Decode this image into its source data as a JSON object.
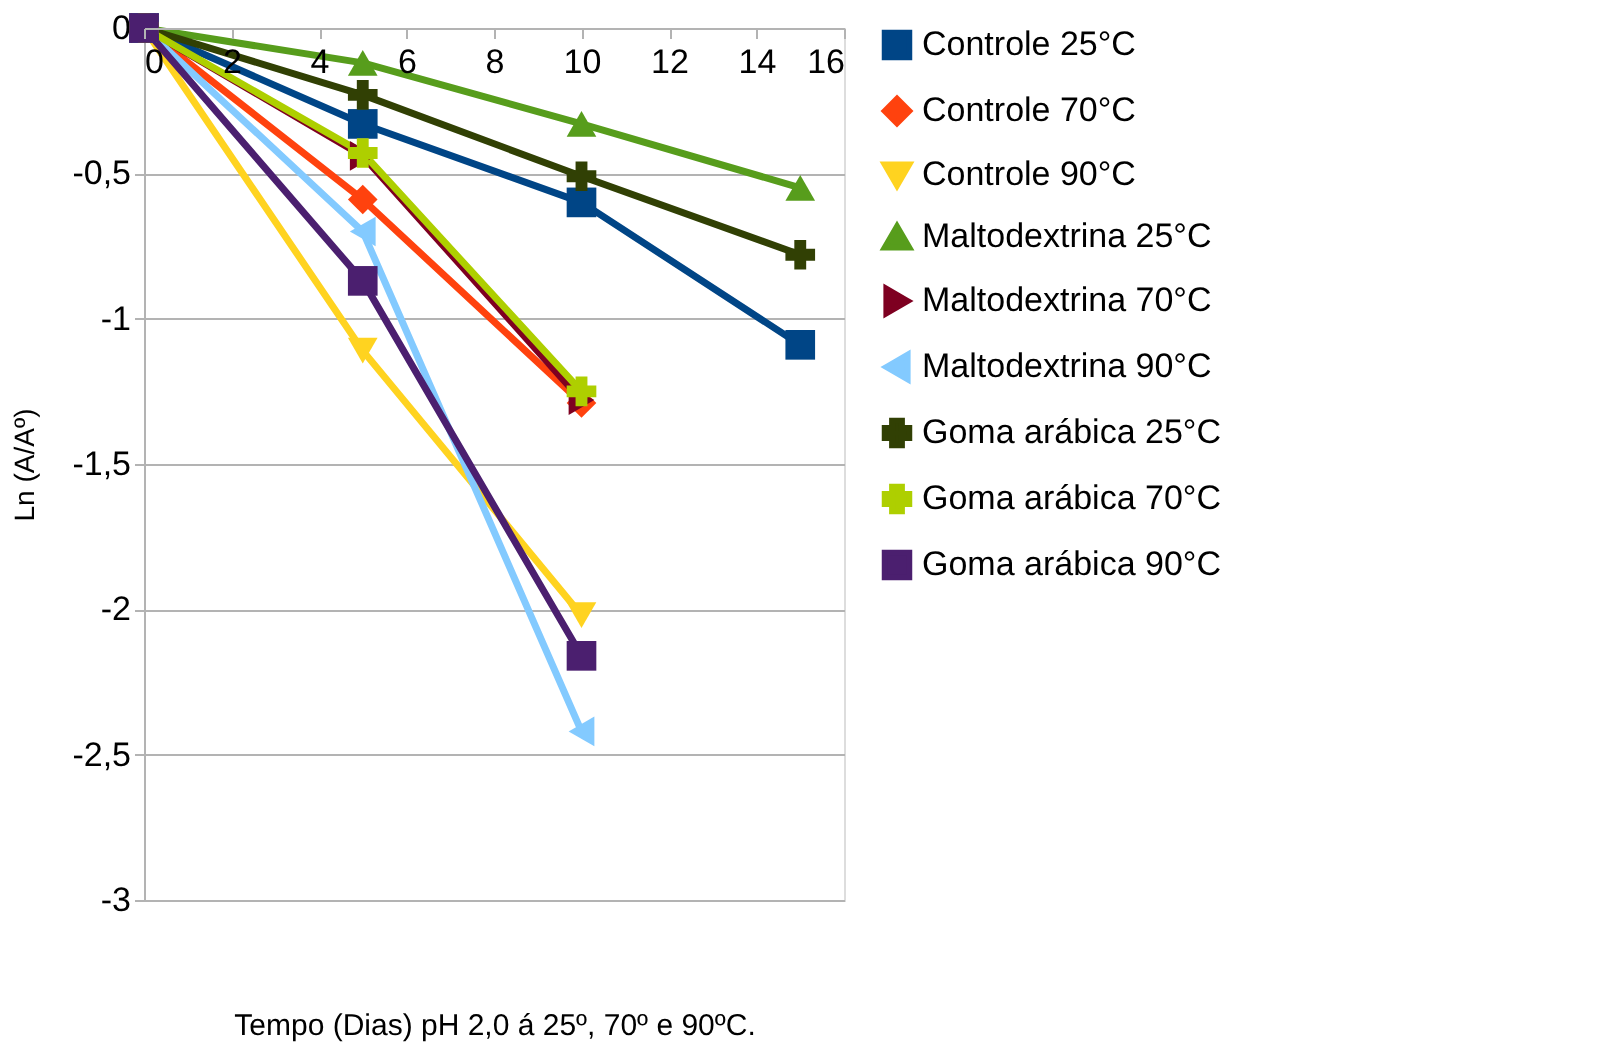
{
  "chart_data": {
    "type": "line",
    "xlabel": "Tempo (Dias) pH 2,0 á 25º, 70º e 90ºC.",
    "ylabel": "Ln (A/Aº)",
    "xlim": [
      0,
      16
    ],
    "xticks": [
      0,
      2,
      4,
      6,
      8,
      10,
      12,
      14,
      16
    ],
    "ylim": [
      -3,
      0
    ],
    "yticks": [
      {
        "value": -3,
        "label": "-3"
      },
      {
        "value": -2.5,
        "label": "-2,5"
      },
      {
        "value": -2,
        "label": "-2"
      },
      {
        "value": -1.5,
        "label": "-1,5"
      },
      {
        "value": -1,
        "label": "-1"
      },
      {
        "value": -0.5,
        "label": "-0,5"
      },
      {
        "value": 0,
        "label": "0"
      }
    ],
    "grid": "y",
    "legend": "right",
    "line_style": "solid",
    "series": [
      {
        "name": "Controle 25°C",
        "color": "#004586",
        "marker": "square",
        "x": [
          0,
          5,
          10,
          15
        ],
        "values": [
          0,
          -0.33,
          -0.6,
          -1.09
        ]
      },
      {
        "name": "Controle 70°C",
        "color": "#ff420e",
        "marker": "diamond",
        "x": [
          0,
          5,
          10
        ],
        "values": [
          0,
          -0.59,
          -1.29
        ]
      },
      {
        "name": "Controle 90°C",
        "color": "#ffd320",
        "marker": "triangle-down",
        "x": [
          0,
          5,
          10
        ],
        "values": [
          0,
          -1.11,
          -2.02
        ]
      },
      {
        "name": "Maltodextrina 25°C",
        "color": "#579d1c",
        "marker": "triangle-up",
        "x": [
          0,
          5,
          10,
          15
        ],
        "values": [
          0,
          -0.12,
          -0.33,
          -0.55
        ]
      },
      {
        "name": "Maltodextrina 70°C",
        "color": "#7e0021",
        "marker": "triangle-right",
        "x": [
          0,
          5,
          10
        ],
        "values": [
          0,
          -0.44,
          -1.28
        ]
      },
      {
        "name": "Maltodextrina 90°C",
        "color": "#83caff",
        "marker": "triangle-left",
        "x": [
          0,
          5,
          10
        ],
        "values": [
          0,
          -0.7,
          -2.42
        ]
      },
      {
        "name": "Goma arábica 25°C",
        "color": "#314004",
        "marker": "cross",
        "x": [
          0,
          5,
          10,
          15
        ],
        "values": [
          0,
          -0.23,
          -0.51,
          -0.78
        ]
      },
      {
        "name": "Goma arábica 70°C",
        "color": "#aecf00",
        "marker": "cross",
        "x": [
          0,
          5,
          10
        ],
        "values": [
          0,
          -0.43,
          -1.25
        ]
      },
      {
        "name": "Goma arábica 90°C",
        "color": "#4b1f6f",
        "marker": "square",
        "x": [
          0,
          5,
          10
        ],
        "values": [
          0,
          -0.87,
          -2.16
        ]
      }
    ]
  }
}
